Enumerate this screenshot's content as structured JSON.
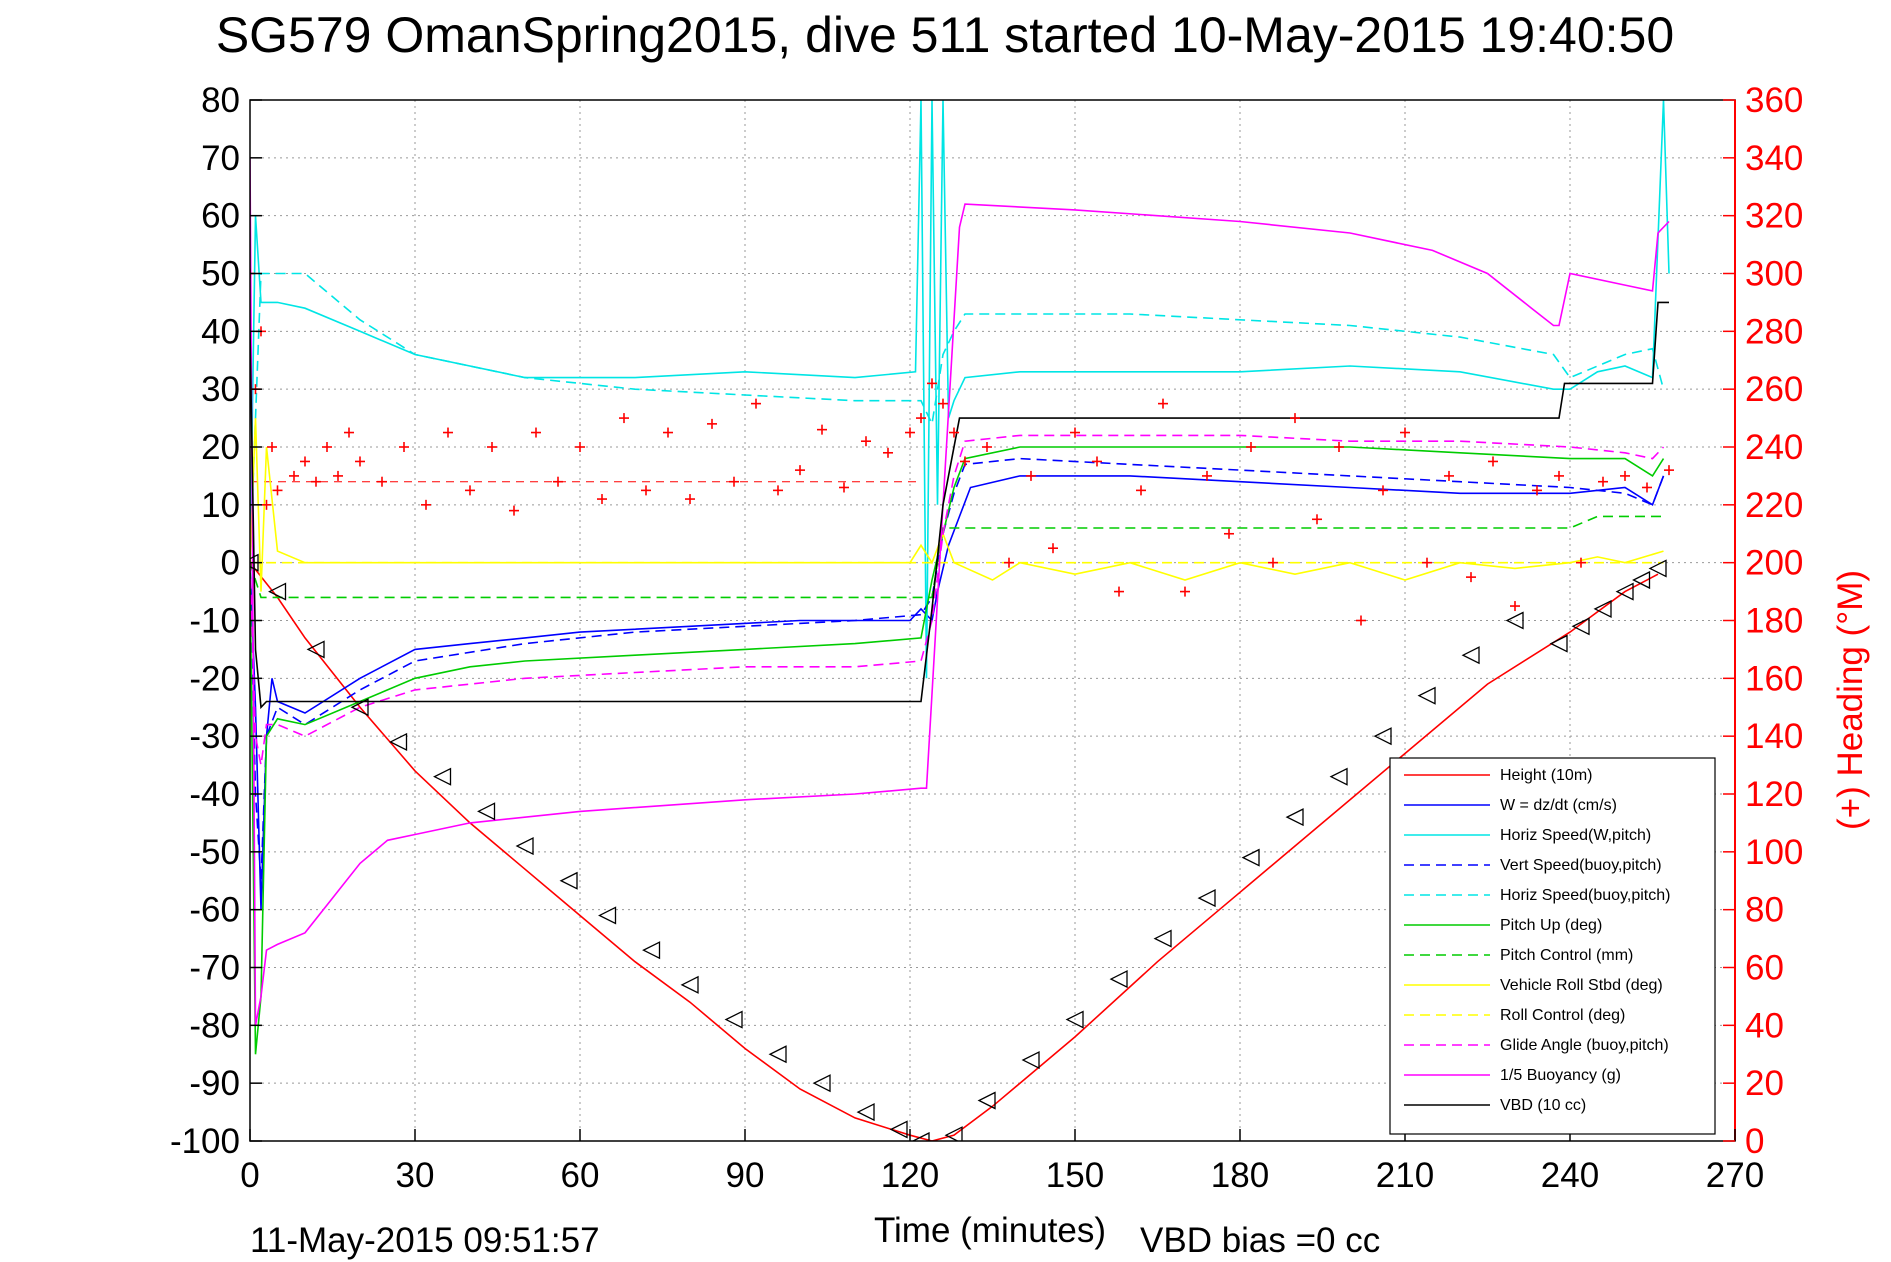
{
  "chart_data": {
    "type": "line",
    "title": "SG579 OmanSpring2015, dive 511 started 10-May-2015 19:40:50",
    "xlabel": "Time (minutes)",
    "ylabel": "",
    "ylabel_right": "(+) Heading (°M)",
    "xlim": [
      0,
      270
    ],
    "ylim": [
      -100,
      80
    ],
    "ylim_right": [
      0,
      360
    ],
    "x_ticks": [
      "0",
      "30",
      "60",
      "90",
      "120",
      "150",
      "180",
      "210",
      "240",
      "270"
    ],
    "y_ticks": [
      "-100",
      "-90",
      "-80",
      "-70",
      "-60",
      "-50",
      "-40",
      "-30",
      "-20",
      "-10",
      "0",
      "10",
      "20",
      "30",
      "40",
      "50",
      "60",
      "70",
      "80"
    ],
    "y_ticks_right": [
      "0",
      "20",
      "40",
      "60",
      "80",
      "100",
      "120",
      "140",
      "160",
      "180",
      "200",
      "220",
      "240",
      "260",
      "280",
      "300",
      "320",
      "340",
      "360"
    ],
    "grid": true,
    "legend_position": "bottom-right",
    "footer_left": "11-May-2015 09:51:57",
    "footer_right": "VBD bias =0 cc",
    "series": [
      {
        "name": "Height (10m)",
        "color": "#ff0000",
        "style": "solid",
        "x": [
          0,
          5,
          10,
          20,
          30,
          40,
          50,
          60,
          70,
          80,
          90,
          100,
          110,
          120,
          124,
          128,
          135,
          150,
          165,
          180,
          195,
          210,
          225,
          240,
          250,
          256
        ],
        "y": [
          0,
          -6,
          -13,
          -25,
          -36,
          -45,
          -53,
          -61,
          -69,
          -76,
          -84,
          -91,
          -96,
          -99,
          -100,
          -99,
          -94,
          -82,
          -69,
          -57,
          -45,
          -33,
          -21,
          -12,
          -5,
          -2
        ]
      },
      {
        "name": "W = dz/dt (cm/s)",
        "color": "#0000ff",
        "style": "solid",
        "x": [
          0,
          1,
          2,
          3,
          4,
          5,
          10,
          20,
          30,
          40,
          50,
          60,
          80,
          100,
          120,
          122,
          124,
          125,
          127,
          129,
          131,
          140,
          160,
          180,
          200,
          220,
          240,
          250,
          255,
          257
        ],
        "y": [
          0,
          -25,
          -60,
          -30,
          -20,
          -24,
          -26,
          -20,
          -15,
          -14,
          -13,
          -12,
          -11,
          -10,
          -10,
          -8,
          -10,
          -5,
          3,
          8,
          13,
          15,
          15,
          14,
          13,
          12,
          12,
          13,
          10,
          15
        ]
      },
      {
        "name": "Horiz Speed(W,pitch)",
        "color": "#00e5e5",
        "style": "solid",
        "x": [
          0,
          1,
          2,
          5,
          10,
          20,
          30,
          50,
          70,
          90,
          110,
          121,
          122,
          123,
          124,
          125,
          126,
          127,
          128,
          129,
          130,
          140,
          160,
          180,
          200,
          220,
          237,
          240,
          245,
          250,
          255,
          257,
          258
        ],
        "y": [
          0,
          60,
          45,
          45,
          44,
          40,
          36,
          32,
          32,
          33,
          32,
          33,
          80,
          -20,
          80,
          10,
          80,
          25,
          28,
          30,
          32,
          33,
          33,
          33,
          34,
          33,
          30,
          30,
          33,
          34,
          32,
          80,
          50
        ]
      },
      {
        "name": "Vert Speed(buoy,pitch)",
        "color": "#0000ff",
        "style": "dashed",
        "x": [
          0,
          1,
          2,
          3,
          5,
          10,
          20,
          30,
          50,
          70,
          90,
          110,
          122,
          124,
          126,
          128,
          130,
          140,
          160,
          180,
          200,
          220,
          240,
          250,
          255,
          257
        ],
        "y": [
          0,
          -40,
          -55,
          -30,
          -25,
          -28,
          -22,
          -17,
          -14,
          -12,
          -11,
          -10,
          -9,
          -6,
          5,
          12,
          17,
          18,
          17,
          16,
          15,
          14,
          13,
          12,
          10,
          15
        ]
      },
      {
        "name": "Horiz Speed(buoy,pitch)",
        "color": "#00e5e5",
        "style": "dashed",
        "x": [
          0,
          2,
          5,
          10,
          20,
          30,
          50,
          70,
          90,
          110,
          122,
          124,
          126,
          128,
          130,
          140,
          160,
          180,
          200,
          220,
          237,
          240,
          250,
          255,
          257
        ],
        "y": [
          0,
          50,
          50,
          50,
          42,
          36,
          32,
          30,
          29,
          28,
          28,
          24,
          36,
          40,
          43,
          43,
          43,
          42,
          41,
          39,
          36,
          32,
          36,
          37,
          30
        ]
      },
      {
        "name": "Pitch Up (deg)",
        "color": "#00cc00",
        "style": "solid",
        "x": [
          0,
          1,
          2,
          3,
          5,
          10,
          20,
          30,
          40,
          50,
          70,
          90,
          110,
          122,
          124,
          126,
          128,
          130,
          140,
          160,
          180,
          200,
          220,
          240,
          250,
          255,
          257
        ],
        "y": [
          0,
          -85,
          -75,
          -30,
          -27,
          -28,
          -24,
          -20,
          -18,
          -17,
          -16,
          -15,
          -14,
          -13,
          -3,
          5,
          13,
          18,
          20,
          20,
          20,
          20,
          19,
          18,
          18,
          15,
          18
        ]
      },
      {
        "name": "Pitch Control (mm)",
        "color": "#00cc00",
        "style": "dashed",
        "x": [
          0,
          2,
          4,
          122,
          124,
          126,
          135,
          240,
          245,
          257
        ],
        "y": [
          0,
          -6,
          -6,
          -6,
          -6,
          6,
          6,
          6,
          8,
          8
        ]
      },
      {
        "name": "Vehicle Roll Stbd (deg)",
        "color": "#ffff00",
        "style": "solid",
        "x": [
          0,
          1,
          2,
          3,
          5,
          10,
          20,
          40,
          60,
          80,
          100,
          120,
          122,
          124,
          126,
          128,
          135,
          140,
          150,
          160,
          170,
          180,
          190,
          200,
          210,
          220,
          230,
          240,
          245,
          250,
          257
        ],
        "y": [
          0,
          25,
          -5,
          20,
          2,
          0,
          0,
          0,
          0,
          0,
          0,
          0,
          3,
          0,
          5,
          0,
          -3,
          0,
          -2,
          0,
          -3,
          0,
          -2,
          0,
          -3,
          0,
          -1,
          0,
          1,
          0,
          2
        ]
      },
      {
        "name": "Roll Control (deg)",
        "color": "#ffff00",
        "style": "dashed",
        "x": [
          0,
          2,
          4,
          122,
          124,
          126,
          257
        ],
        "y": [
          0,
          0,
          0,
          0,
          0,
          0,
          0
        ]
      },
      {
        "name": "Glide Angle (buoy,pitch)",
        "color": "#ff00ff",
        "style": "dashed",
        "x": [
          0,
          1,
          2,
          3,
          5,
          10,
          20,
          30,
          50,
          70,
          90,
          110,
          122,
          124,
          126,
          128,
          130,
          140,
          160,
          180,
          200,
          220,
          240,
          250,
          255,
          257
        ],
        "y": [
          0,
          -30,
          -35,
          -28,
          -28,
          -30,
          -25,
          -22,
          -20,
          -19,
          -18,
          -18,
          -17,
          -10,
          5,
          15,
          21,
          22,
          22,
          22,
          21,
          21,
          20,
          19,
          18,
          20
        ]
      },
      {
        "name": "1/5 Buoyancy (g)",
        "color": "#ff00ff",
        "style": "solid",
        "x": [
          0,
          1,
          2,
          3,
          5,
          10,
          15,
          20,
          25,
          30,
          40,
          60,
          90,
          110,
          122,
          123,
          126,
          129,
          130,
          150,
          180,
          200,
          215,
          225,
          233,
          237,
          238,
          240,
          250,
          255,
          256,
          258
        ],
        "y": [
          70,
          -80,
          -75,
          -67,
          -66,
          -64,
          -58,
          -52,
          -48,
          -47,
          -45,
          -43,
          -41,
          -40,
          -39,
          -39,
          10,
          58,
          62,
          61,
          59,
          57,
          54,
          50,
          44,
          41,
          41,
          50,
          48,
          47,
          57,
          59
        ]
      },
      {
        "name": "VBD (10 cc)",
        "color": "#000000",
        "style": "solid",
        "x": [
          0,
          1,
          2,
          3,
          122,
          124,
          126,
          129,
          130,
          237,
          238,
          239,
          255,
          256,
          257,
          258
        ],
        "y": [
          40,
          -15,
          -25,
          -24,
          -24,
          -8,
          10,
          25,
          25,
          25,
          25,
          31,
          31,
          45,
          45,
          45
        ]
      }
    ],
    "heading": {
      "name": "(+) Heading (°M)",
      "color": "#ff0000",
      "marker": "+",
      "axis": "right",
      "x": [
        0,
        1,
        2,
        3,
        4,
        5,
        8,
        10,
        12,
        14,
        16,
        18,
        20,
        24,
        28,
        32,
        36,
        40,
        44,
        48,
        52,
        56,
        60,
        64,
        68,
        72,
        76,
        80,
        84,
        88,
        92,
        96,
        100,
        104,
        108,
        112,
        116,
        120,
        122,
        124,
        126,
        128,
        130,
        134,
        138,
        142,
        146,
        150,
        154,
        158,
        162,
        166,
        170,
        174,
        178,
        182,
        186,
        190,
        194,
        198,
        202,
        206,
        210,
        214,
        218,
        222,
        226,
        230,
        234,
        238,
        242,
        246,
        250,
        254,
        258
      ],
      "y": [
        300,
        260,
        280,
        220,
        240,
        225,
        230,
        235,
        228,
        240,
        230,
        245,
        235,
        228,
        240,
        220,
        245,
        225,
        240,
        218,
        245,
        228,
        240,
        222,
        250,
        225,
        245,
        222,
        248,
        228,
        255,
        225,
        232,
        246,
        226,
        242,
        238,
        245,
        250,
        262,
        255,
        245,
        235,
        240,
        200,
        230,
        205,
        245,
        235,
        190,
        225,
        255,
        190,
        230,
        210,
        240,
        200,
        250,
        215,
        240,
        180,
        225,
        245,
        200,
        230,
        195,
        235,
        185,
        225,
        230,
        200,
        228,
        230,
        226,
        232
      ]
    },
    "dive_markers": {
      "x": [
        0,
        5,
        12,
        20,
        27,
        35,
        43,
        50,
        58,
        65,
        73,
        80,
        88,
        96,
        104,
        112,
        118,
        122,
        128,
        134,
        142,
        150,
        158,
        166,
        174,
        182,
        190,
        198,
        206,
        214,
        222,
        230,
        238,
        242,
        246,
        250,
        253,
        256
      ],
      "y": [
        0,
        -5,
        -15,
        -25,
        -31,
        -37,
        -43,
        -49,
        -55,
        -61,
        -67,
        -73,
        -79,
        -85,
        -90,
        -95,
        -98,
        -100,
        -99,
        -93,
        -86,
        -79,
        -72,
        -65,
        -58,
        -51,
        -44,
        -37,
        -30,
        -23,
        -16,
        -10,
        -14,
        -11,
        -8,
        -5,
        -3,
        -1
      ]
    },
    "dashed_reference_red": 14
  }
}
